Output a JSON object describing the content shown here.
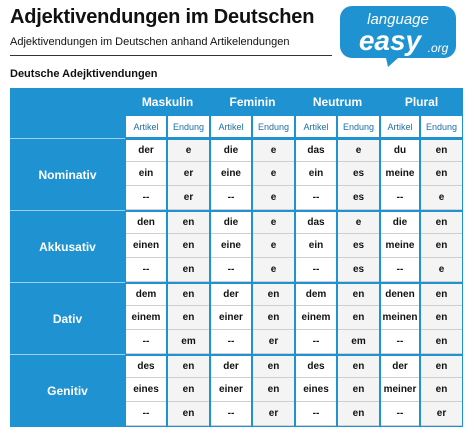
{
  "title": "Adjektivendungen im Deutschen",
  "subtitle": "Adjektivendungen im Deutschen anhand Artikelendungen",
  "section_label": "Deutsche Adejktivendungen",
  "logo": {
    "line1": "language",
    "line2": "easy",
    "line3": ".org",
    "color": "#1f93d2"
  },
  "table": {
    "genders": [
      "Maskulin",
      "Feminin",
      "Neutrum",
      "Plural"
    ],
    "subheaders": [
      "Artikel",
      "Endung",
      "Artikel",
      "Endung",
      "Artikel",
      "Endung",
      "Artikel",
      "Endung"
    ],
    "cases": [
      {
        "name": "Nominativ",
        "rows": [
          [
            "der",
            "e",
            "die",
            "e",
            "das",
            "e",
            "du",
            "en"
          ],
          [
            "ein",
            "er",
            "eine",
            "e",
            "ein",
            "es",
            "meine",
            "en"
          ],
          [
            "--",
            "er",
            "--",
            "e",
            "--",
            "es",
            "--",
            "e"
          ]
        ]
      },
      {
        "name": "Akkusativ",
        "rows": [
          [
            "den",
            "en",
            "die",
            "e",
            "das",
            "e",
            "die",
            "en"
          ],
          [
            "einen",
            "en",
            "eine",
            "e",
            "ein",
            "es",
            "meine",
            "en"
          ],
          [
            "--",
            "en",
            "--",
            "e",
            "--",
            "es",
            "--",
            "e"
          ]
        ]
      },
      {
        "name": "Dativ",
        "rows": [
          [
            "dem",
            "en",
            "der",
            "en",
            "dem",
            "en",
            "denen",
            "en"
          ],
          [
            "einem",
            "en",
            "einer",
            "en",
            "einem",
            "en",
            "meinen",
            "en"
          ],
          [
            "--",
            "em",
            "--",
            "er",
            "--",
            "em",
            "--",
            "en"
          ]
        ]
      },
      {
        "name": "Genitiv",
        "rows": [
          [
            "des",
            "en",
            "der",
            "en",
            "des",
            "en",
            "der",
            "en"
          ],
          [
            "eines",
            "en",
            "einer",
            "en",
            "eines",
            "en",
            "meiner",
            "en"
          ],
          [
            "--",
            "en",
            "--",
            "er",
            "--",
            "en",
            "--",
            "er"
          ]
        ]
      }
    ]
  }
}
